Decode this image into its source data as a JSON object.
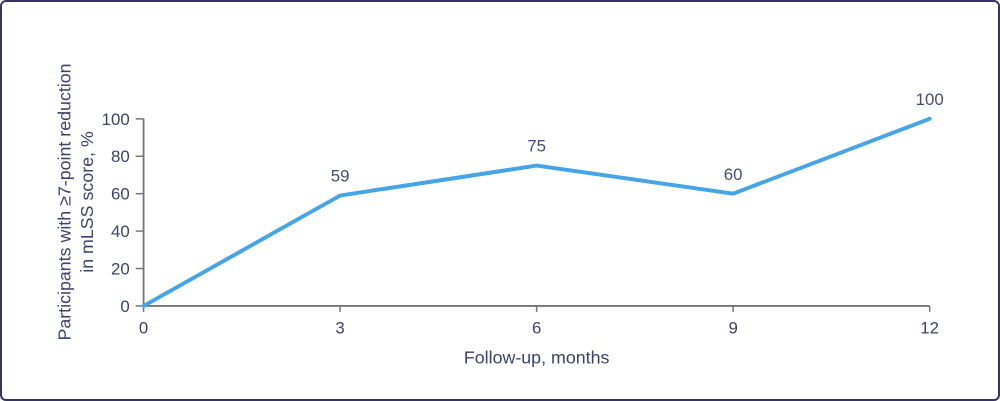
{
  "card": {
    "background": "#ffffff",
    "border_color": "#38325f"
  },
  "chart_data": {
    "type": "line",
    "title": "",
    "xlabel": "Follow-up, months",
    "ylabel": "Participants with ≥7-point reduction in mLSS score, %",
    "ylabel_lines": [
      "Participants with ≥7-point reduction",
      "in mLSS score, %"
    ],
    "x": [
      0,
      3,
      6,
      9,
      12
    ],
    "values": [
      0,
      59,
      75,
      60,
      100
    ],
    "point_labels": [
      null,
      "59",
      "75",
      "60",
      "100"
    ],
    "xticks": [
      0,
      3,
      6,
      9,
      12
    ],
    "yticks": [
      0,
      20,
      40,
      60,
      80,
      100
    ],
    "xlim": [
      0,
      12
    ],
    "ylim": [
      0,
      100
    ],
    "grid": false,
    "legend_position": "none",
    "line_color": "#45a5e6",
    "axis_color": "#757575",
    "text_color": "#3d4170"
  }
}
